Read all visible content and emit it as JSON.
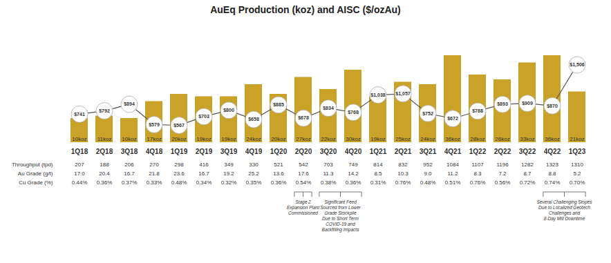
{
  "chart_data": {
    "type": "bar",
    "title": "AuEq Production (koz) and AISC ($/ozAu)",
    "categories": [
      "1Q18",
      "2Q18",
      "3Q18",
      "4Q18",
      "1Q19",
      "2Q19",
      "3Q19",
      "4Q19",
      "1Q20",
      "2Q20",
      "3Q20",
      "4Q20",
      "1Q21",
      "2Q21",
      "3Q21",
      "4Q21",
      "1Q22",
      "2Q22",
      "3Q22",
      "4Q22",
      "1Q23"
    ],
    "series": [
      {
        "type": "bar",
        "color": "#C9A227",
        "values": [
          10,
          11,
          10,
          17,
          20,
          19,
          19,
          24,
          20,
          27,
          22,
          30,
          19,
          25,
          24,
          36,
          28,
          26,
          33,
          36,
          21
        ],
        "value_labels": [
          "10koz",
          "11koz",
          "10koz",
          "17koz",
          "20koz",
          "19koz",
          "19koz",
          "24koz",
          "20koz",
          "27koz",
          "22koz",
          "30koz",
          "19koz",
          "25koz",
          "24koz",
          "36koz",
          "28koz",
          "26koz",
          "33koz",
          "36koz",
          "21koz"
        ],
        "data_labels": true
      },
      {
        "type": "line",
        "axis": "y2",
        "color": "#555555",
        "marker": "circle",
        "values": [
          741,
          792,
          894,
          579,
          567,
          703,
          800,
          658,
          885,
          678,
          834,
          768,
          1038,
          1057,
          752,
          672,
          788,
          893,
          909,
          870,
          1506
        ],
        "value_labels": [
          "$741",
          "$792",
          "$894",
          "$579",
          "$567",
          "$703",
          "$800",
          "$658",
          "$885",
          "$678",
          "$834",
          "$768",
          "$1,038",
          "$1,057",
          "$752",
          "$672",
          "$788",
          "$893",
          "$909",
          "$870",
          "$1,506"
        ],
        "data_labels": true
      }
    ],
    "ylim": [
      0,
      48
    ],
    "y2lim": [
      300,
      2100
    ],
    "tick_labels": "x",
    "grid": false,
    "table": {
      "rows": [
        {
          "label": "Throughput",
          "unit": "(tpd)",
          "values": [
            207,
            188,
            206,
            270,
            298,
            416,
            349,
            330,
            521,
            542,
            703,
            749,
            814,
            832,
            952,
            1084,
            1107,
            1196,
            1282,
            1323,
            1310
          ]
        },
        {
          "label": "Au Grade",
          "unit": "(g/t)",
          "values": [
            17.0,
            20.4,
            16.7,
            21.8,
            23.6,
            16.7,
            19.2,
            25.2,
            13.6,
            17.6,
            11.3,
            14.2,
            8.5,
            10.3,
            9.0,
            11.2,
            8.3,
            7.2,
            8.7,
            8.8,
            5.2
          ],
          "value_labels": [
            "17.0",
            "20.4",
            "16.7",
            "21.8",
            "23.6",
            "16.7",
            "19.2",
            "25.2",
            "13.6",
            "17.6",
            "11.3",
            "14.2",
            "8.5",
            "10.3",
            "9.0",
            "11.2",
            "8.3",
            "7.2",
            "8.7",
            "8.8",
            "5.2"
          ]
        },
        {
          "label": "Cu Grade",
          "unit": "(%)",
          "values": [
            0.44,
            0.36,
            0.37,
            0.33,
            0.48,
            0.34,
            0.32,
            0.35,
            0.36,
            0.54,
            0.38,
            0.36,
            0.31,
            0.76,
            0.48,
            0.51,
            0.76,
            0.56,
            0.72,
            0.74,
            0.7
          ],
          "value_labels": [
            "0.44%",
            "0.36%",
            "0.37%",
            "0.33%",
            "0.48%",
            "0.34%",
            "0.32%",
            "0.35%",
            "0.36%",
            "0.54%",
            "0.38%",
            "0.36%",
            "0.31%",
            "0.76%",
            "0.48%",
            "0.51%",
            "0.76%",
            "0.56%",
            "0.72%",
            "0.74%",
            "0.70%"
          ]
        }
      ]
    },
    "annotations": [
      {
        "text": "Stage 2\nExpansion Plant\nCommissioned",
        "from": "2Q20",
        "to": "2Q20"
      },
      {
        "text": "Significant Feed\nSourced from Lower\nGrade Stockpile\nDue to Short Term\nCOVID-19 and\nBackfilling Impacts",
        "from": "3Q20",
        "to": "4Q20"
      },
      {
        "text": "Several Challenging Stopes\nDue to Localized Geotech\nChallenges and\n8-Day Mill Downtime",
        "from": "4Q22",
        "to": "1Q23"
      }
    ]
  }
}
